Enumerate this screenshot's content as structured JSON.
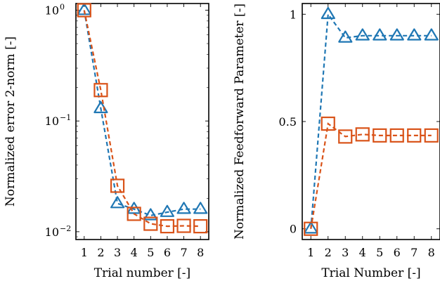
{
  "chart_data": [
    {
      "type": "line",
      "title": "",
      "xlabel": "Trial number [-]",
      "ylabel": "Normalized error 2-norm [-]",
      "yscale": "log",
      "ylim": [
        0.0085,
        1.15
      ],
      "xlim": [
        0.5,
        8.5
      ],
      "x": [
        1,
        2,
        3,
        4,
        5,
        6,
        7,
        8
      ],
      "xticks": [
        "1",
        "2",
        "3",
        "4",
        "5",
        "6",
        "7",
        "8"
      ],
      "yticks": [
        {
          "value": 1,
          "base": "10",
          "exp": "0"
        },
        {
          "value": 0.1,
          "base": "10",
          "exp": "−1"
        },
        {
          "value": 0.01,
          "base": "10",
          "exp": "−2"
        }
      ],
      "grid": false,
      "series": [
        {
          "color": "#1f77b4",
          "marker": "triangle",
          "values": [
            1.0,
            0.13,
            0.018,
            0.016,
            0.014,
            0.015,
            0.016,
            0.016
          ]
        },
        {
          "color": "#d95319",
          "marker": "square",
          "values": [
            1.0,
            0.19,
            0.026,
            0.0145,
            0.0118,
            0.0112,
            0.0113,
            0.0112
          ]
        }
      ]
    },
    {
      "type": "line",
      "title": "",
      "xlabel": "Trial Number [-]",
      "ylabel": "Normalized Feedforward Parameter [-]",
      "yscale": "linear",
      "ylim": [
        -0.05,
        1.05
      ],
      "xlim": [
        0.5,
        8.5
      ],
      "x": [
        1,
        2,
        3,
        4,
        5,
        6,
        7,
        8
      ],
      "xticks": [
        "1",
        "2",
        "3",
        "4",
        "5",
        "6",
        "7",
        "8"
      ],
      "yticks": [
        {
          "value": 0,
          "label": "0"
        },
        {
          "value": 0.5,
          "label": "0.5"
        },
        {
          "value": 1,
          "label": "1"
        }
      ],
      "grid": false,
      "series": [
        {
          "color": "#1f77b4",
          "marker": "triangle",
          "values": [
            0.0,
            1.0,
            0.89,
            0.9,
            0.9,
            0.9,
            0.9,
            0.9
          ]
        },
        {
          "color": "#d95319",
          "marker": "square",
          "values": [
            0.0,
            0.49,
            0.43,
            0.44,
            0.435,
            0.435,
            0.435,
            0.435
          ]
        }
      ]
    }
  ]
}
